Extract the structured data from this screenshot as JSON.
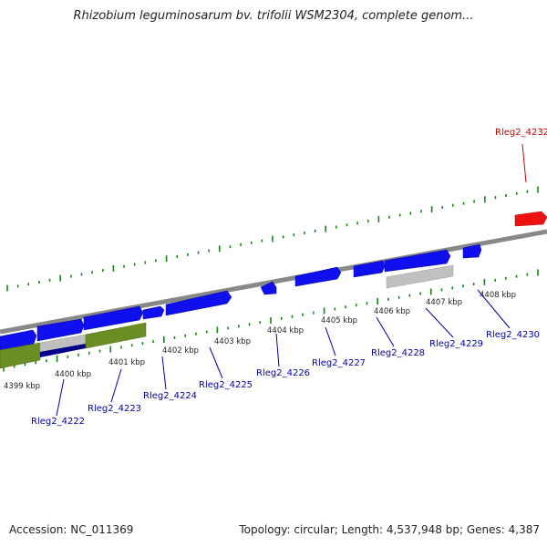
{
  "title": "Rhizobium leguminosarum bv. trifolii WSM2304, complete genom...",
  "footer": {
    "accession": "Accession: NC_011369",
    "summary": "Topology: circular; Length: 4,537,948 bp; Genes: 4,387"
  },
  "colors": {
    "gene_forward": "#1010ee",
    "gene_highlight": "#ee1111",
    "gene_other": "#6b8e23",
    "gene_pseudo": "#c0c0c0",
    "scale_ticks": "#118811",
    "axis": "#888888",
    "label_blue": "#0000aa",
    "label_red": "#cc0000"
  },
  "scale_labels": [
    "4399 kbp",
    "4400 kbp",
    "4401 kbp",
    "4402 kbp",
    "4403 kbp",
    "4404 kbp",
    "4405 kbp",
    "4406 kbp",
    "4407 kbp",
    "4408 kbp"
  ],
  "genes": [
    {
      "label": "Rleg2_4222",
      "color": "blue"
    },
    {
      "label": "Rleg2_4223",
      "color": "blue"
    },
    {
      "label": "Rleg2_4224",
      "color": "blue"
    },
    {
      "label": "Rleg2_4225",
      "color": "blue"
    },
    {
      "label": "Rleg2_4226",
      "color": "blue"
    },
    {
      "label": "Rleg2_4227",
      "color": "blue"
    },
    {
      "label": "Rleg2_4228",
      "color": "blue"
    },
    {
      "label": "Rleg2_4229",
      "color": "blue"
    },
    {
      "label": "Rleg2_4230",
      "color": "blue"
    },
    {
      "label": "Rleg2_4232",
      "color": "red"
    }
  ]
}
